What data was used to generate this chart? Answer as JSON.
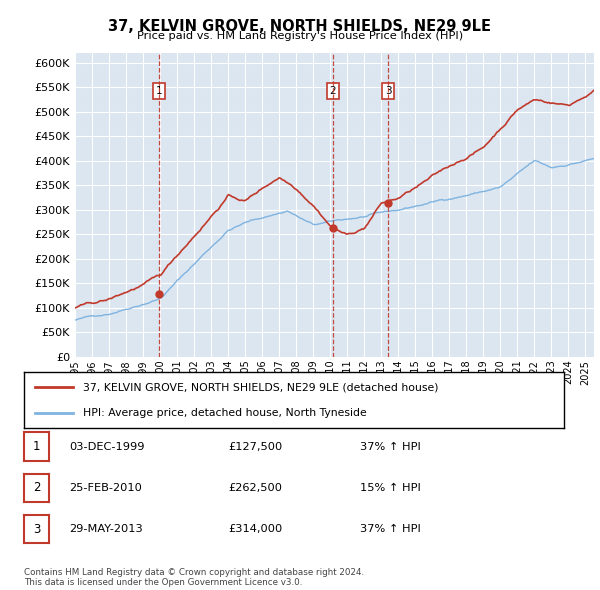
{
  "title": "37, KELVIN GROVE, NORTH SHIELDS, NE29 9LE",
  "subtitle": "Price paid vs. HM Land Registry's House Price Index (HPI)",
  "ylim": [
    0,
    620000
  ],
  "yticks": [
    0,
    50000,
    100000,
    150000,
    200000,
    250000,
    300000,
    350000,
    400000,
    450000,
    500000,
    550000,
    600000
  ],
  "ytick_labels": [
    "£0",
    "£50K",
    "£100K",
    "£150K",
    "£200K",
    "£250K",
    "£300K",
    "£350K",
    "£400K",
    "£450K",
    "£500K",
    "£550K",
    "£600K"
  ],
  "hpi_color": "#7fb3e0",
  "price_color": "#c0392b",
  "sale_marker_color": "#c0392b",
  "plot_bg_color": "#dce6f1",
  "legend_line1": "37, KELVIN GROVE, NORTH SHIELDS, NE29 9LE (detached house)",
  "legend_line2": "HPI: Average price, detached house, North Tyneside",
  "sales": [
    {
      "date": 1999.92,
      "price": 127500,
      "label": "1"
    },
    {
      "date": 2010.15,
      "price": 262500,
      "label": "2"
    },
    {
      "date": 2013.41,
      "price": 314000,
      "label": "3"
    }
  ],
  "table_rows": [
    [
      "1",
      "03-DEC-1999",
      "£127,500",
      "37% ↑ HPI"
    ],
    [
      "2",
      "25-FEB-2010",
      "£262,500",
      "15% ↑ HPI"
    ],
    [
      "3",
      "29-MAY-2013",
      "£314,000",
      "37% ↑ HPI"
    ]
  ],
  "footer": "Contains HM Land Registry data © Crown copyright and database right 2024.\nThis data is licensed under the Open Government Licence v3.0.",
  "x_start": 1995.0,
  "x_end": 2025.5,
  "x_tick_years": [
    1995,
    1996,
    1997,
    1998,
    1999,
    2000,
    2001,
    2002,
    2003,
    2004,
    2005,
    2006,
    2007,
    2008,
    2009,
    2010,
    2011,
    2012,
    2013,
    2014,
    2015,
    2016,
    2017,
    2018,
    2019,
    2020,
    2021,
    2022,
    2023,
    2024,
    2025
  ]
}
